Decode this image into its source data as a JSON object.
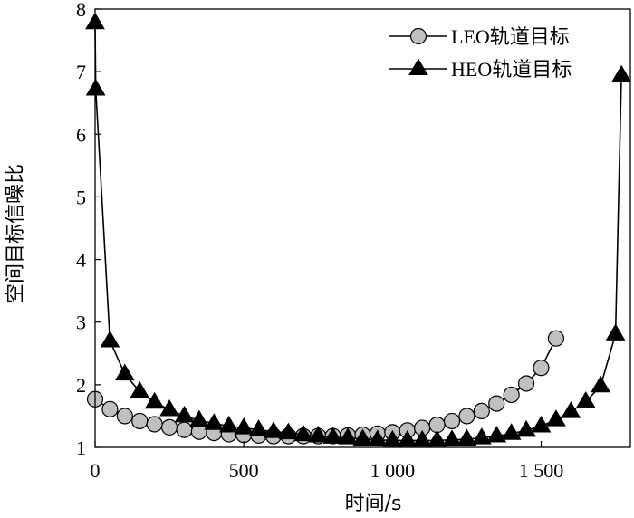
{
  "chart_data": {
    "type": "line",
    "xlabel": "时间/s",
    "ylabel": "空间目标信噪比",
    "xlim": [
      0,
      1800
    ],
    "ylim": [
      1,
      8
    ],
    "xticks": [
      0,
      500,
      1000,
      1500
    ],
    "xtick_labels": [
      "0",
      "500",
      "1 000",
      "1 500"
    ],
    "yticks": [
      1,
      2,
      3,
      4,
      5,
      6,
      7,
      8
    ],
    "ytick_labels": [
      "1",
      "2",
      "3",
      "4",
      "5",
      "6",
      "7",
      "8"
    ],
    "legend_position": "top-right",
    "grid": false,
    "series": [
      {
        "name": "LEO轨道目标",
        "marker": "circle",
        "color": "#000000",
        "marker_fill": "#c0c0c0",
        "x": [
          0,
          50,
          100,
          150,
          200,
          250,
          300,
          350,
          400,
          450,
          500,
          550,
          600,
          650,
          700,
          750,
          800,
          850,
          900,
          950,
          1000,
          1050,
          1100,
          1150,
          1200,
          1250,
          1300,
          1350,
          1400,
          1450,
          1500,
          1550
        ],
        "y": [
          1.77,
          1.61,
          1.5,
          1.42,
          1.37,
          1.32,
          1.28,
          1.25,
          1.23,
          1.21,
          1.2,
          1.19,
          1.18,
          1.18,
          1.18,
          1.18,
          1.18,
          1.19,
          1.2,
          1.22,
          1.24,
          1.27,
          1.31,
          1.36,
          1.42,
          1.5,
          1.58,
          1.7,
          1.84,
          2.02,
          2.27,
          2.74
        ]
      },
      {
        "name": "HEO轨道目标",
        "marker": "triangle",
        "color": "#000000",
        "marker_fill": "#000000",
        "x": [
          0,
          2,
          50,
          100,
          150,
          200,
          250,
          300,
          350,
          400,
          450,
          500,
          550,
          600,
          650,
          700,
          750,
          800,
          850,
          900,
          950,
          1000,
          1050,
          1100,
          1150,
          1200,
          1250,
          1300,
          1350,
          1400,
          1450,
          1500,
          1550,
          1600,
          1650,
          1700,
          1750,
          1770
        ],
        "y": [
          7.78,
          6.72,
          2.7,
          2.17,
          1.89,
          1.72,
          1.6,
          1.5,
          1.43,
          1.38,
          1.34,
          1.31,
          1.28,
          1.25,
          1.23,
          1.2,
          1.18,
          1.16,
          1.15,
          1.13,
          1.12,
          1.11,
          1.11,
          1.11,
          1.11,
          1.12,
          1.13,
          1.15,
          1.18,
          1.22,
          1.27,
          1.34,
          1.44,
          1.57,
          1.73,
          1.98,
          2.81,
          6.94
        ]
      }
    ]
  }
}
